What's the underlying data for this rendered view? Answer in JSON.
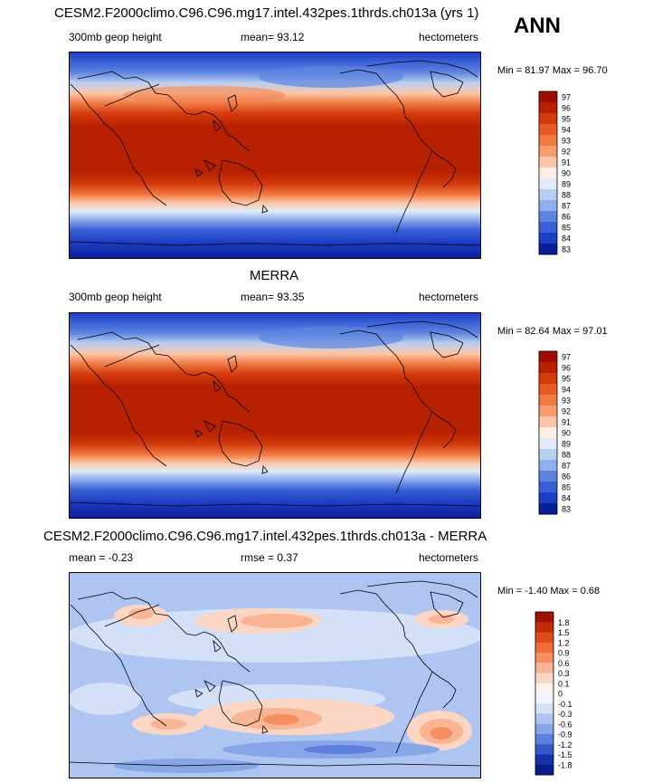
{
  "season": "ANN",
  "panels": [
    {
      "title": "CESM2.F2000climo.C96.C96.mg17.intel.432pes.1thrds.ch013a (yrs 1)",
      "left_label": "300mb geop height",
      "center_label": "mean=  93.12",
      "right_label": "hectometers",
      "minmax": "Min =  81.97 Max =  96.70"
    },
    {
      "title": "MERRA",
      "left_label": "300mb geop height",
      "center_label": "mean=  93.35",
      "right_label": "hectometers",
      "minmax": "Min =  82.64 Max =  97.01"
    },
    {
      "title": "CESM2.F2000climo.C96.C96.mg17.intel.432pes.1thrds.ch013a - MERRA",
      "left_label": "mean =  -0.23",
      "center_label": "rmse =   0.37",
      "right_label": "hectometers",
      "minmax": "Min =  -1.40 Max =   0.68"
    }
  ],
  "chart_data": [
    {
      "type": "heatmap",
      "title": "CESM2.F2000climo.C96.C96.mg17.intel.432pes.1thrds.ch013a (yrs 1)",
      "variable": "300mb geop height",
      "units": "hectometers",
      "mean": 93.12,
      "min": 81.97,
      "max": 96.7,
      "colorbar_levels": [
        "97",
        "96",
        "95",
        "94",
        "93",
        "92",
        "91",
        "90",
        "89",
        "88",
        "87",
        "86",
        "85",
        "84",
        "83"
      ],
      "colorbar_colors": [
        "#9e0d00",
        "#b82100",
        "#d33a0d",
        "#e85a24",
        "#f17a43",
        "#f79d6d",
        "#fbc6a8",
        "#fdeee6",
        "#e1ebf8",
        "#b9cff1",
        "#8eaeec",
        "#5e84e0",
        "#3960d6",
        "#1c3ec4",
        "#0a1e9a"
      ]
    },
    {
      "type": "heatmap",
      "title": "MERRA",
      "variable": "300mb geop height",
      "units": "hectometers",
      "mean": 93.35,
      "min": 82.64,
      "max": 97.01,
      "colorbar_levels": [
        "97",
        "96",
        "95",
        "94",
        "93",
        "92",
        "91",
        "90",
        "89",
        "88",
        "87",
        "86",
        "85",
        "84",
        "83"
      ],
      "colorbar_colors": [
        "#9e0d00",
        "#b82100",
        "#d33a0d",
        "#e85a24",
        "#f17a43",
        "#f79d6d",
        "#fbc6a8",
        "#fdeee6",
        "#e1ebf8",
        "#b9cff1",
        "#8eaeec",
        "#5e84e0",
        "#3960d6",
        "#1c3ec4",
        "#0a1e9a"
      ]
    },
    {
      "type": "heatmap",
      "title": "CESM2.F2000climo.C96.C96.mg17.intel.432pes.1thrds.ch013a - MERRA",
      "units": "hectometers",
      "mean": -0.23,
      "rmse": 0.37,
      "min": -1.4,
      "max": 0.68,
      "colorbar_levels": [
        "1.8",
        "1.5",
        "1.2",
        "0.9",
        "0.6",
        "0.3",
        "0.1",
        "0",
        "-0.1",
        "-0.3",
        "-0.6",
        "-0.9",
        "-1.2",
        "-1.5",
        "-1.8"
      ],
      "colorbar_colors": [
        "#a01200",
        "#c42b05",
        "#e0491a",
        "#ef6b38",
        "#f58f62",
        "#f9b493",
        "#fcd6c4",
        "#fdf2ec",
        "#f0f4fc",
        "#d3e0f7",
        "#adc5f0",
        "#86a6e8",
        "#5c80dc",
        "#3558c8",
        "#1433a6",
        "#071d8a"
      ]
    }
  ]
}
